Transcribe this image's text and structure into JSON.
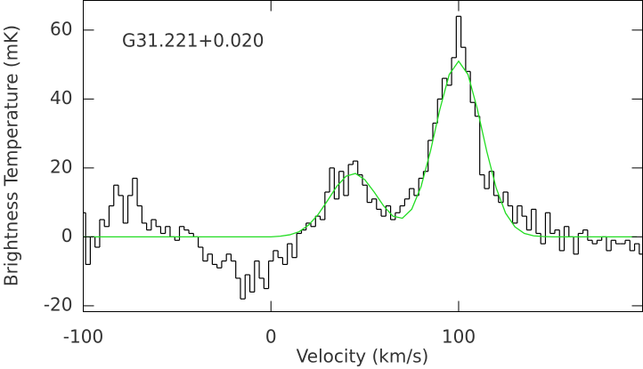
{
  "chart_data": {
    "type": "step",
    "xlabel": "Velocity (km/s)",
    "ylabel": "Brightness Temperature (mK)",
    "annotation": "G31.221+0.020",
    "xlim": [
      -100,
      198
    ],
    "ylim": [
      -21.7,
      68.6
    ],
    "xticks": [
      -100,
      0,
      100
    ],
    "yticks": [
      -20,
      0,
      20,
      40,
      60
    ],
    "series": [
      {
        "color": "#000000",
        "x": [
          -100,
          -97.5,
          -95,
          -92.5,
          -90,
          -87.5,
          -85,
          -82.5,
          -80,
          -77.5,
          -75,
          -72.5,
          -70,
          -67.5,
          -65,
          -62.5,
          -60,
          -57.5,
          -55,
          -52.5,
          -50,
          -47.5,
          -45,
          -42.5,
          -40,
          -37.5,
          -35,
          -32.5,
          -30,
          -27.5,
          -25,
          -22.5,
          -20,
          -17.5,
          -15,
          -12.5,
          -10,
          -7.5,
          -5,
          -2.5,
          0,
          2.5,
          5,
          7.5,
          10,
          12.5,
          15,
          17.5,
          20,
          22.5,
          25,
          27.5,
          30,
          32.5,
          35,
          37.5,
          40,
          42.5,
          45,
          47.5,
          50,
          52.5,
          55,
          57.5,
          60,
          62.5,
          65,
          67.5,
          70,
          72.5,
          75,
          77.5,
          80,
          82.5,
          85,
          87.5,
          90,
          92.5,
          95,
          97.5,
          100,
          102.5,
          105,
          107.5,
          110,
          112.5,
          115,
          117.5,
          120,
          122.5,
          125,
          127.5,
          130,
          132.5,
          135,
          137.5,
          140,
          142.5,
          145,
          147.5,
          150,
          152.5,
          155,
          157.5,
          160,
          162.5,
          165,
          167.5,
          170,
          172.5,
          175,
          177.5,
          180,
          182.5,
          185,
          187.5,
          190,
          192.5,
          195,
          197.5
        ],
        "values": [
          7,
          -8,
          0,
          -3,
          5,
          3,
          9,
          15,
          12,
          4,
          12,
          17,
          9,
          4,
          2,
          5,
          3,
          1,
          3,
          0,
          -1,
          3,
          2,
          1,
          0,
          -3,
          -7,
          -5,
          -8,
          -9,
          -7,
          -5,
          -7,
          -12,
          -18,
          -11,
          -16,
          -7,
          -12,
          -15,
          -7,
          -4,
          -6,
          -8,
          -2,
          -6,
          1,
          2,
          4,
          3,
          6,
          5,
          13,
          20,
          11,
          19,
          12,
          21,
          22,
          18,
          15,
          10,
          11,
          8,
          6,
          9,
          5,
          7,
          9,
          11,
          14,
          12,
          17,
          19,
          28,
          33,
          40,
          46,
          44,
          52,
          64,
          55,
          48,
          39,
          35,
          18,
          14,
          19,
          12,
          10,
          13,
          9,
          4,
          9,
          6,
          2,
          8,
          1,
          -2,
          7,
          1,
          2,
          -4,
          3,
          0,
          -5,
          1,
          2,
          -1,
          -2,
          -1,
          0,
          -4,
          -1,
          -2,
          -2,
          -1,
          -4,
          -2,
          -5
        ]
      },
      {
        "color": "#22dd22",
        "x": [
          -100,
          -95,
          -90,
          -85,
          -80,
          -75,
          -70,
          -65,
          -60,
          -55,
          -50,
          -45,
          -40,
          -35,
          -30,
          -25,
          -20,
          -15,
          -10,
          -5,
          0,
          5,
          10,
          15,
          20,
          25,
          30,
          35,
          40,
          45,
          50,
          55,
          60,
          65,
          70,
          75,
          80,
          85,
          90,
          95,
          100,
          105,
          110,
          115,
          120,
          125,
          130,
          135,
          140,
          145,
          150,
          155,
          160,
          165,
          170,
          175,
          180,
          185,
          190,
          195
        ],
        "values": [
          0,
          0,
          0,
          0,
          0,
          0,
          0,
          0,
          0,
          0,
          0,
          0,
          0,
          0,
          0,
          0,
          0,
          0,
          0,
          0,
          0,
          0.2,
          0.6,
          1.5,
          3.4,
          6.4,
          10.4,
          14.6,
          17.6,
          18.4,
          16.6,
          13.0,
          9.0,
          6.0,
          5.4,
          8.0,
          14.6,
          24.9,
          37.0,
          47.1,
          51,
          47.1,
          37.0,
          24.8,
          14.2,
          6.9,
          2.9,
          1.0,
          0.3,
          0.1,
          0,
          0,
          0,
          0,
          0,
          0,
          0,
          0,
          0,
          0
        ]
      }
    ]
  }
}
